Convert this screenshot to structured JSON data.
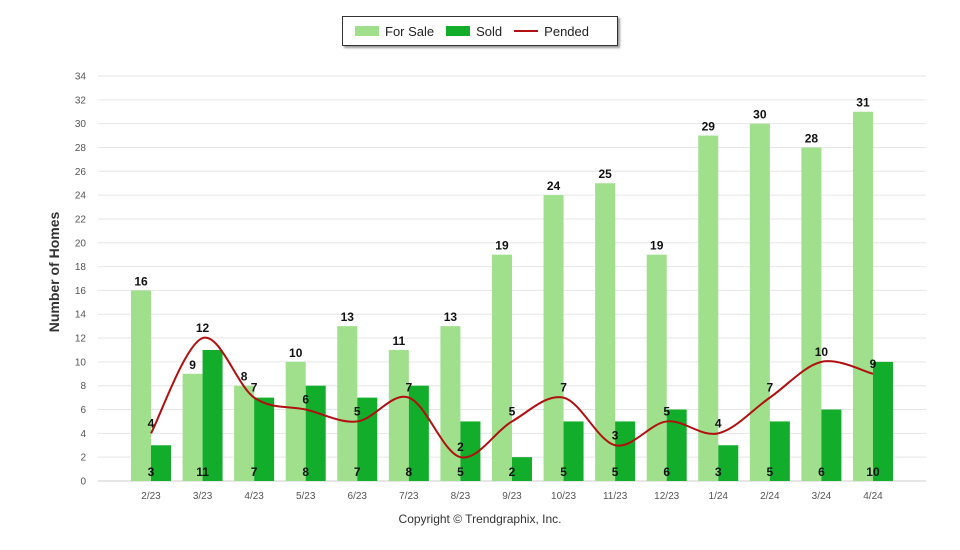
{
  "legend": {
    "for_sale": "For Sale",
    "sold": "Sold",
    "pended": "Pended"
  },
  "copyright": "Copyright © Trendgraphix, Inc.",
  "colors": {
    "for_sale": "#a0df8c",
    "sold": "#12ad2b",
    "pended": "#b01010",
    "grid": "#e6e6e6",
    "axis_text": "#555555"
  },
  "chart_data": {
    "type": "bar",
    "ylabel": "Number of Homes",
    "ylim": [
      0,
      34
    ],
    "ytick_step": 2,
    "grid": true,
    "legend_position": "top-center",
    "categories": [
      "2/23",
      "3/23",
      "4/23",
      "5/23",
      "6/23",
      "7/23",
      "8/23",
      "9/23",
      "10/23",
      "11/23",
      "12/23",
      "1/24",
      "2/24",
      "3/24",
      "4/24"
    ],
    "series": [
      {
        "name": "For Sale",
        "kind": "bar",
        "values": [
          16,
          9,
          8,
          10,
          13,
          11,
          13,
          19,
          24,
          25,
          19,
          29,
          30,
          28,
          31
        ]
      },
      {
        "name": "Sold",
        "kind": "bar",
        "values": [
          3,
          11,
          7,
          8,
          7,
          8,
          5,
          2,
          5,
          5,
          6,
          3,
          5,
          6,
          10
        ]
      },
      {
        "name": "Pended",
        "kind": "line",
        "values": [
          4,
          12,
          7,
          6,
          5,
          7,
          2,
          5,
          7,
          3,
          5,
          4,
          7,
          10,
          9
        ]
      }
    ]
  }
}
